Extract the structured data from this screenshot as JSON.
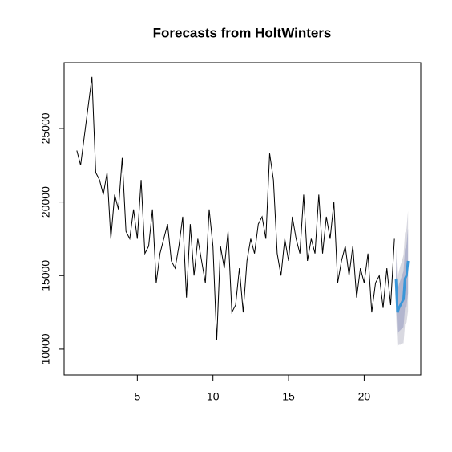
{
  "chart_data": {
    "type": "line",
    "title": "Forecasts from HoltWinters",
    "x": [
      1,
      1.25,
      1.5,
      1.75,
      2,
      2.25,
      2.5,
      2.75,
      3,
      3.25,
      3.5,
      3.75,
      4,
      4.25,
      4.5,
      4.75,
      5,
      5.25,
      5.5,
      5.75,
      6,
      6.25,
      6.5,
      6.75,
      7,
      7.25,
      7.5,
      7.75,
      8,
      8.25,
      8.5,
      8.75,
      9,
      9.25,
      9.5,
      9.75,
      10,
      10.25,
      10.5,
      10.75,
      11,
      11.25,
      11.5,
      11.75,
      12,
      12.25,
      12.5,
      12.75,
      13,
      13.25,
      13.5,
      13.75,
      14,
      14.25,
      14.5,
      14.75,
      15,
      15.25,
      15.5,
      15.75,
      16,
      16.25,
      16.5,
      16.75,
      17,
      17.25,
      17.5,
      17.75,
      18,
      18.25,
      18.5,
      18.75,
      19,
      19.25,
      19.5,
      19.75,
      20,
      20.25,
      20.5,
      20.75,
      21,
      21.25,
      21.5,
      21.75,
      22
    ],
    "values": [
      23500,
      22500,
      24500,
      26500,
      28500,
      22000,
      21500,
      20500,
      22000,
      17500,
      20500,
      19500,
      23000,
      18000,
      17500,
      19500,
      17500,
      21500,
      16500,
      17000,
      19500,
      14500,
      16500,
      17500,
      18500,
      16000,
      15500,
      17000,
      19000,
      13500,
      18500,
      15000,
      17500,
      16000,
      14500,
      19500,
      17000,
      10600,
      17000,
      15500,
      18000,
      12500,
      13000,
      15500,
      12500,
      16000,
      17500,
      16500,
      18500,
      19000,
      17500,
      23300,
      21500,
      16500,
      15000,
      17500,
      16000,
      19000,
      17500,
      16500,
      20500,
      16000,
      17500,
      16500,
      20500,
      16500,
      19000,
      17500,
      20000,
      14500,
      16000,
      17000,
      15000,
      17000,
      13500,
      15500,
      14500,
      16500,
      12500,
      14500,
      15000,
      12800,
      15500,
      13000,
      17500
    ],
    "color": "#000000",
    "forecast": {
      "color": "#3a96d8",
      "band80_color": "#b3b6cf",
      "band95_color": "#d9d9e1",
      "x": [
        22.1,
        22.2,
        22.3,
        22.4,
        22.5,
        22.6,
        22.7,
        22.8,
        22.9
      ],
      "values": [
        14800,
        12500,
        12800,
        13000,
        13200,
        13400,
        14800,
        15000,
        16000
      ],
      "lower80": [
        13400,
        11000,
        11200,
        11300,
        11400,
        11500,
        12800,
        12900,
        13800
      ],
      "upper80": [
        16200,
        14000,
        14400,
        14700,
        15000,
        15300,
        16800,
        17100,
        18200
      ],
      "lower95": [
        12600,
        10200,
        10300,
        10300,
        10400,
        10400,
        11700,
        11800,
        12600
      ],
      "upper95": [
        17000,
        14800,
        15300,
        15700,
        16000,
        16400,
        17900,
        18200,
        19400
      ]
    },
    "xlim": [
      0.16,
      23.74
    ],
    "xticks": [
      5,
      10,
      15,
      20
    ],
    "ylim": [
      8250,
      29470
    ],
    "yticks": [
      10000,
      15000,
      20000,
      25000
    ]
  }
}
